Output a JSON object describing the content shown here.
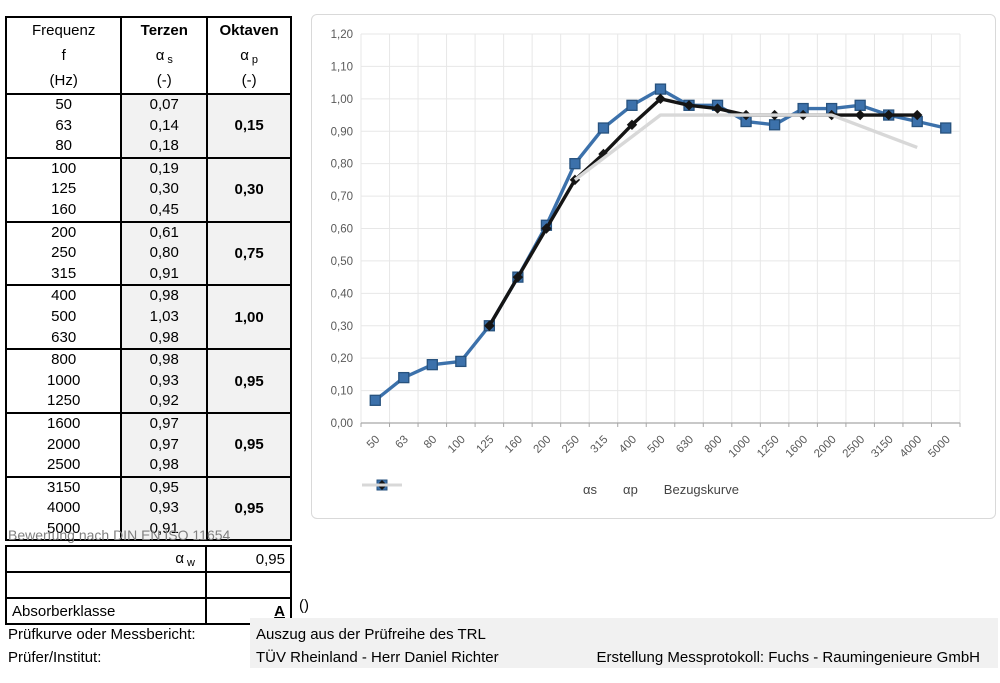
{
  "table": {
    "headers": [
      {
        "title": "Frequenz",
        "symbol": "f",
        "symbol_sub": "",
        "unit": "(Hz)"
      },
      {
        "title": "Terzen",
        "symbol": "α",
        "symbol_sub": "s",
        "unit": "(-)"
      },
      {
        "title": "Oktaven",
        "symbol": "α",
        "symbol_sub": "p",
        "unit": "(-)"
      }
    ],
    "groups": [
      {
        "freqs": [
          "50",
          "63",
          "80"
        ],
        "terzen": [
          "0,07",
          "0,14",
          "0,18"
        ],
        "oktave": "0,15"
      },
      {
        "freqs": [
          "100",
          "125",
          "160"
        ],
        "terzen": [
          "0,19",
          "0,30",
          "0,45"
        ],
        "oktave": "0,30"
      },
      {
        "freqs": [
          "200",
          "250",
          "315"
        ],
        "terzen": [
          "0,61",
          "0,80",
          "0,91"
        ],
        "oktave": "0,75"
      },
      {
        "freqs": [
          "400",
          "500",
          "630"
        ],
        "terzen": [
          "0,98",
          "1,03",
          "0,98"
        ],
        "oktave": "1,00"
      },
      {
        "freqs": [
          "800",
          "1000",
          "1250"
        ],
        "terzen": [
          "0,98",
          "0,93",
          "0,92"
        ],
        "oktave": "0,95"
      },
      {
        "freqs": [
          "1600",
          "2000",
          "2500"
        ],
        "terzen": [
          "0,97",
          "0,97",
          "0,98"
        ],
        "oktave": "0,95"
      },
      {
        "freqs": [
          "3150",
          "4000",
          "5000"
        ],
        "terzen": [
          "0,95",
          "0,93",
          "0,91"
        ],
        "oktave": "0,95"
      }
    ]
  },
  "rating": {
    "note": "Bewertung nach DIN EN ISO 11654",
    "alpha_symbol": "α",
    "alpha_sub": "w",
    "value": "0,95",
    "class_label": "Absorberklasse",
    "class_value": "A",
    "suffix": "()"
  },
  "footer": {
    "row1_label": "Prüfkurve oder Messbericht:",
    "row1_value": "Auszug aus der Prüfreihe des TRL",
    "row2_label": "Prüfer/Institut:",
    "row2_value": "TÜV Rheinland - Herr Daniel Richter",
    "right_value": "Erstellung Messprotokoll: Fuchs - Raumingenieure GmbH"
  },
  "chart_data": {
    "type": "line",
    "title": "",
    "xlabel": "",
    "ylabel": "",
    "categories": [
      "50",
      "63",
      "80",
      "100",
      "125",
      "160",
      "200",
      "250",
      "315",
      "400",
      "500",
      "630",
      "800",
      "1000",
      "1250",
      "1600",
      "2000",
      "2500",
      "3150",
      "4000",
      "5000"
    ],
    "ylim": [
      0,
      1.2
    ],
    "ytick_step": 0.1,
    "ytick_labels": [
      "0,00",
      "0,10",
      "0,20",
      "0,30",
      "0,40",
      "0,50",
      "0,60",
      "0,70",
      "0,80",
      "0,90",
      "1,00",
      "1,10",
      "1,20"
    ],
    "grid": true,
    "legend_position": "bottom",
    "series": [
      {
        "name": "αs",
        "color": "#3c71ab",
        "marker_stroke": "#27527e",
        "marker": "square",
        "values": [
          0.07,
          0.14,
          0.18,
          0.19,
          0.3,
          0.45,
          0.61,
          0.8,
          0.91,
          0.98,
          1.03,
          0.98,
          0.98,
          0.93,
          0.92,
          0.97,
          0.97,
          0.98,
          0.95,
          0.93,
          0.91
        ]
      },
      {
        "name": "αp",
        "color": "#151515",
        "marker_stroke": "#151515",
        "marker": "diamond",
        "values": [
          null,
          null,
          null,
          null,
          0.3,
          0.45,
          0.6,
          0.75,
          0.83,
          0.92,
          1.0,
          0.98,
          0.97,
          0.95,
          0.95,
          0.95,
          0.95,
          0.95,
          0.95,
          0.95,
          null
        ]
      },
      {
        "name": "Bezugskurve",
        "color": "#d8d8d8",
        "marker_stroke": "#d8d8d8",
        "marker": "none",
        "values": [
          null,
          null,
          null,
          null,
          null,
          null,
          null,
          0.75,
          null,
          null,
          0.95,
          null,
          null,
          0.95,
          null,
          null,
          0.95,
          null,
          null,
          0.85,
          null
        ]
      }
    ],
    "colors": {
      "grid": "#e7e7e7",
      "axis": "#a6a6a6",
      "tick_text": "#595959"
    }
  }
}
